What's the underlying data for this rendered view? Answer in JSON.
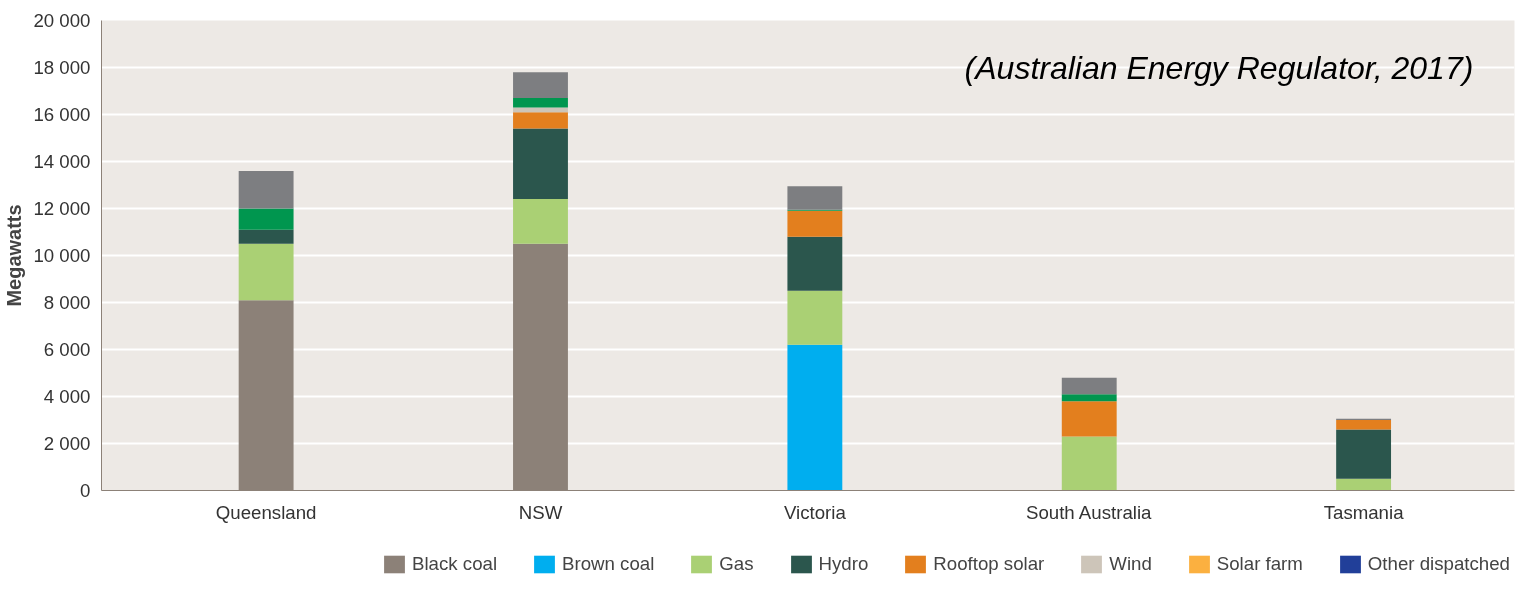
{
  "chart_data": {
    "type": "bar",
    "stacked": true,
    "ylabel": "Megawatts",
    "categories": [
      "Queensland",
      "NSW",
      "Victoria",
      "South Australia",
      "Tasmania"
    ],
    "series": [
      {
        "name": "Black coal",
        "color": "#8c8178",
        "values": [
          8100,
          10500,
          null,
          null,
          null
        ]
      },
      {
        "name": "Brown coal",
        "color": "#00aeef",
        "values": [
          null,
          null,
          6200,
          null,
          null
        ]
      },
      {
        "name": "Gas",
        "color": "#aad074",
        "values": [
          2400,
          1900,
          2300,
          2300,
          500
        ]
      },
      {
        "name": "Hydro",
        "color": "#2b564d",
        "values": [
          600,
          3000,
          2300,
          null,
          2100
        ]
      },
      {
        "name": "Rooftop solar",
        "color": "#e37f1e",
        "values": [
          null,
          700,
          1100,
          1500,
          400
        ]
      },
      {
        "name": "Wind",
        "color": "#cdc5b9",
        "values": [
          null,
          200,
          null,
          null,
          null
        ]
      },
      {
        "name": "Solar farm",
        "color": "#fbb040",
        "values": [
          null,
          null,
          null,
          null,
          null
        ]
      },
      {
        "name": "Other dispatched",
        "color": "#213f99",
        "values": [
          null,
          null,
          null,
          null,
          null
        ]
      },
      {
        "color": "#00964f",
        "values": [
          900,
          400,
          50,
          300,
          null
        ]
      },
      {
        "color": "#7d7e81",
        "values": [
          1600,
          1100,
          1000,
          700,
          50
        ]
      }
    ],
    "ylim": [
      0,
      20000
    ],
    "yticks": [
      0,
      {
        "value": 2000,
        "label": "2 000"
      },
      {
        "value": 4000,
        "label": "4 000"
      },
      {
        "value": 6000,
        "label": "6 000"
      },
      {
        "value": 8000,
        "label": "8 000"
      },
      {
        "value": 10000,
        "label": "10 000"
      },
      {
        "value": 12000,
        "label": "12 000"
      },
      {
        "value": 14000,
        "label": "14 000"
      },
      {
        "value": 16000,
        "label": "16 000"
      },
      {
        "value": 18000,
        "label": "18 000"
      },
      {
        "value": 20000,
        "label": "20 000"
      }
    ],
    "grid": "y",
    "legend": "bottom",
    "annotations": [
      "(Australian Energy Regulator, 2017)"
    ]
  }
}
